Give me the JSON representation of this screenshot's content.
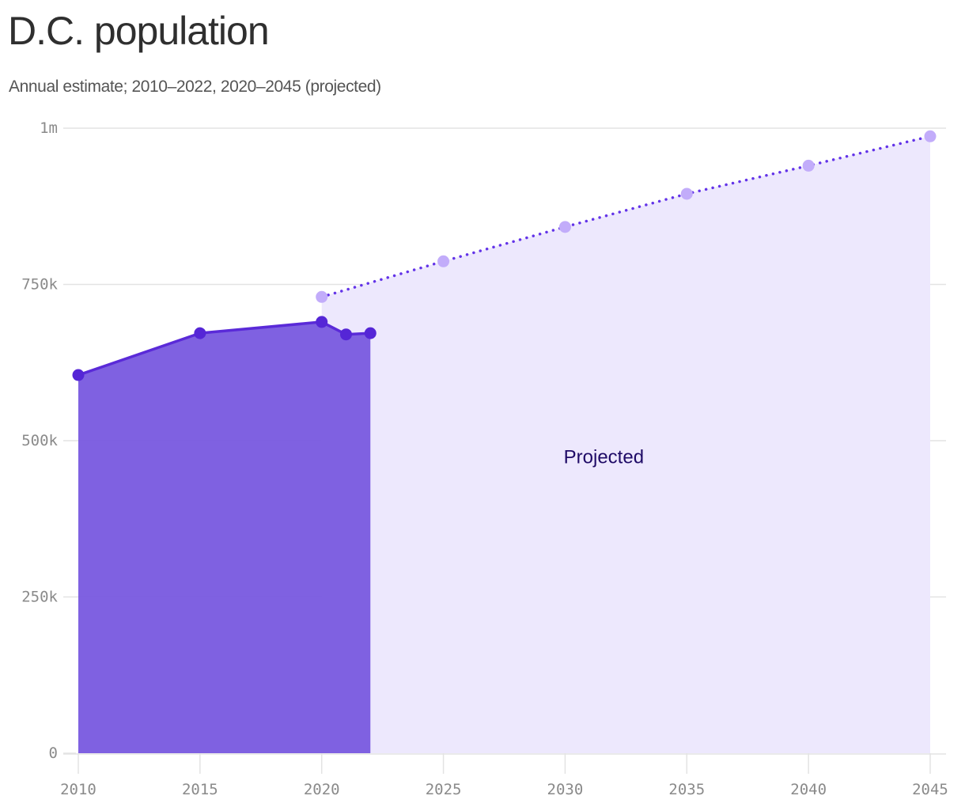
{
  "header": {
    "title": "D.C. population",
    "subtitle": "Annual estimate; 2010–2022, 2020–2045 (projected)"
  },
  "annotation": {
    "label": "Projected"
  },
  "colors": {
    "actual_fill": "#7b5ce0",
    "actual_line": "#5a2ad8",
    "actual_point": "#5526d6",
    "projected_fill": "#ede8fd",
    "projected_line": "#6334e8",
    "projected_point": "#c2acfa",
    "grid": "#e3e3e3",
    "annotation": "#1e0a66"
  },
  "chart_data": {
    "type": "area",
    "title": "D.C. population",
    "subtitle": "Annual estimate; 2010–2022, 2020–2045 (projected)",
    "xlabel": "",
    "ylabel": "",
    "xlim": [
      2010,
      2045
    ],
    "ylim": [
      0,
      1000000
    ],
    "x_ticks": [
      2010,
      2015,
      2020,
      2025,
      2030,
      2035,
      2040,
      2045
    ],
    "x_tick_labels": [
      "2010",
      "2015",
      "2020",
      "2025",
      "2030",
      "2035",
      "2040",
      "2045"
    ],
    "y_ticks": [
      0,
      250000,
      500000,
      750000,
      1000000
    ],
    "y_tick_labels": [
      "0",
      "250k",
      "500k",
      "750k",
      "1m"
    ],
    "grid": true,
    "legend": null,
    "annotations": [
      {
        "text": "Projected",
        "x": 2032.5,
        "y": 465000
      }
    ],
    "series": [
      {
        "name": "Annual estimate",
        "style": "solid line, filled area",
        "x": [
          2010,
          2015,
          2020,
          2021,
          2022
        ],
        "values": [
          605000,
          672000,
          690000,
          670000,
          672000
        ]
      },
      {
        "name": "Projected",
        "style": "dotted line, light filled area",
        "x": [
          2020,
          2025,
          2030,
          2035,
          2040,
          2045
        ],
        "values": [
          730000,
          787000,
          842000,
          895000,
          940000,
          987000
        ]
      }
    ]
  }
}
